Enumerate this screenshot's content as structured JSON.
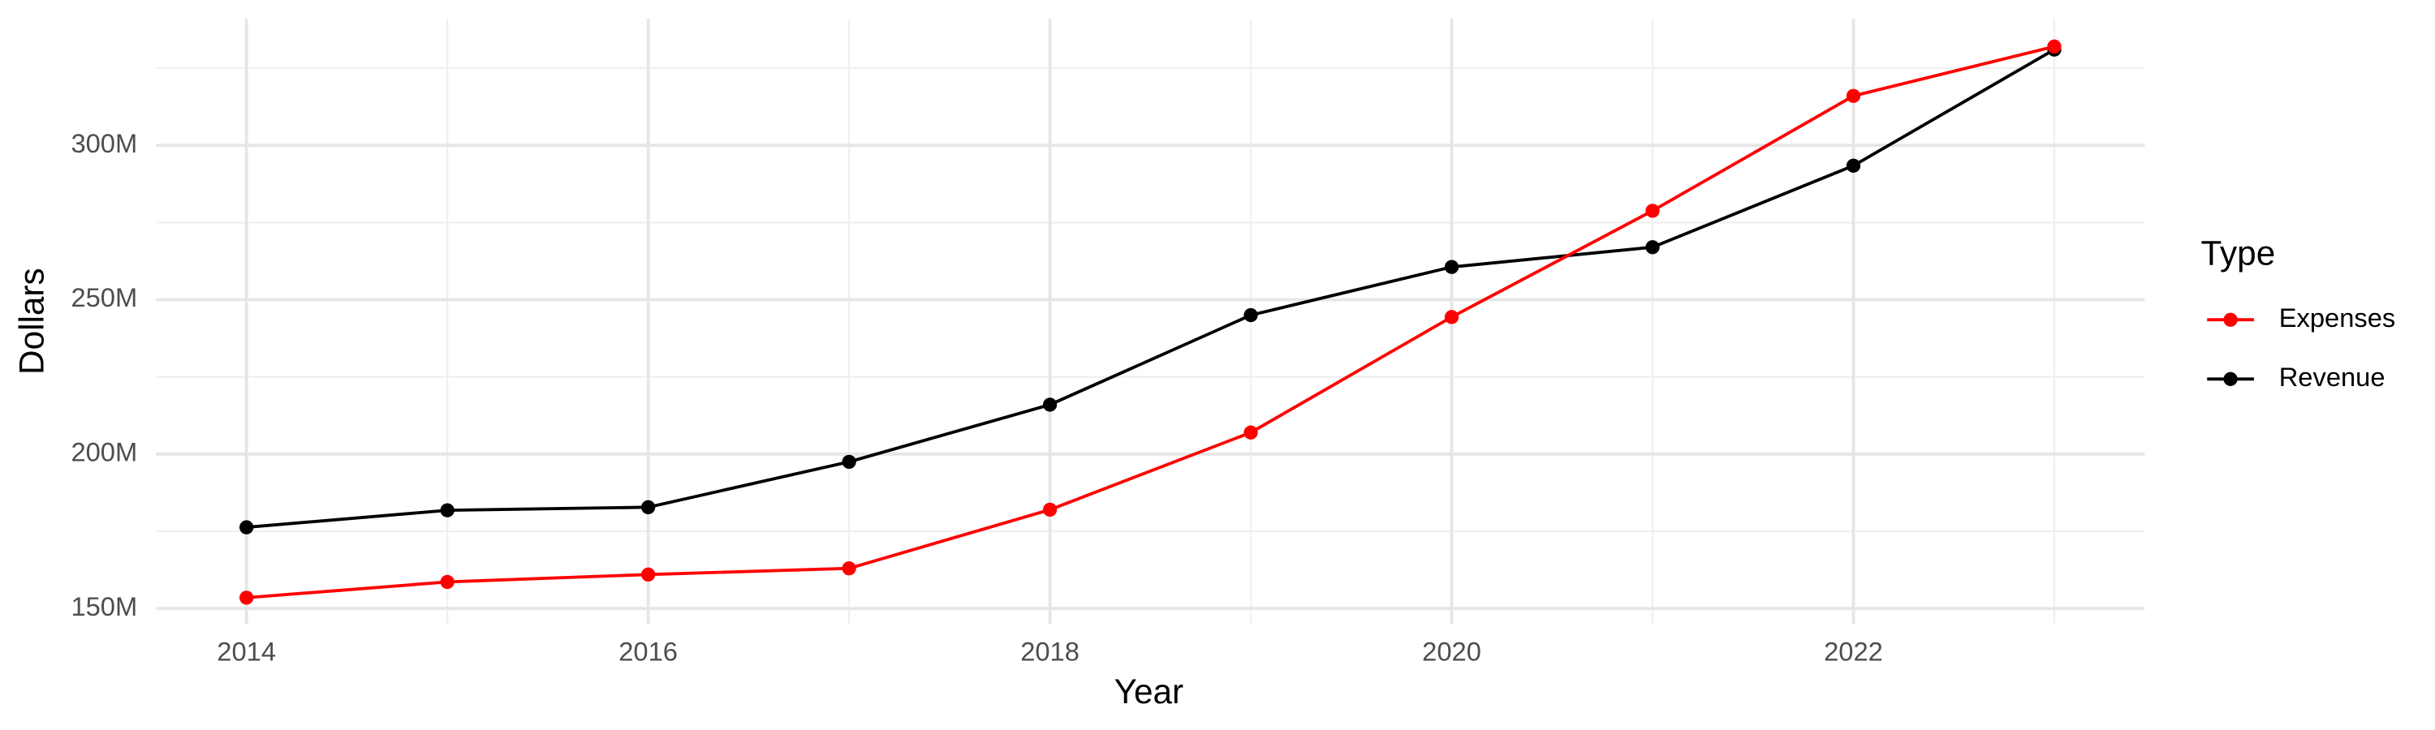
{
  "chart_data": {
    "type": "line",
    "x_label": "Year",
    "y_label": "Dollars",
    "x": [
      2014,
      2015,
      2016,
      2017,
      2018,
      2019,
      2020,
      2021,
      2022,
      2023
    ],
    "series": [
      {
        "name": "Expenses",
        "color": "#ff0000",
        "values": [
          153500000,
          158600000,
          161000000,
          163000000,
          182000000,
          207000000,
          244400000,
          278800000,
          316000000,
          332000000
        ]
      },
      {
        "name": "Revenue",
        "color": "#000000",
        "values": [
          176300000,
          181800000,
          182800000,
          197500000,
          216000000,
          245000000,
          260600000,
          267000000,
          293400000,
          331000000
        ]
      }
    ],
    "xlim": [
      2013.55,
      2023.45
    ],
    "ylim": [
      145000000,
      341000000
    ],
    "xticks": [
      2014,
      2016,
      2018,
      2020,
      2022
    ],
    "x_minor_ticks": [
      2015,
      2017,
      2019,
      2021,
      2023
    ],
    "yticks": [
      {
        "value": 150000000,
        "label": "150M"
      },
      {
        "value": 200000000,
        "label": "200M"
      },
      {
        "value": 250000000,
        "label": "250M"
      },
      {
        "value": 300000000,
        "label": "300M"
      }
    ],
    "y_minor_ticks": [
      175000000,
      225000000,
      275000000,
      325000000
    ],
    "grid": true,
    "legend_title": "Type",
    "legend_position": "right"
  }
}
